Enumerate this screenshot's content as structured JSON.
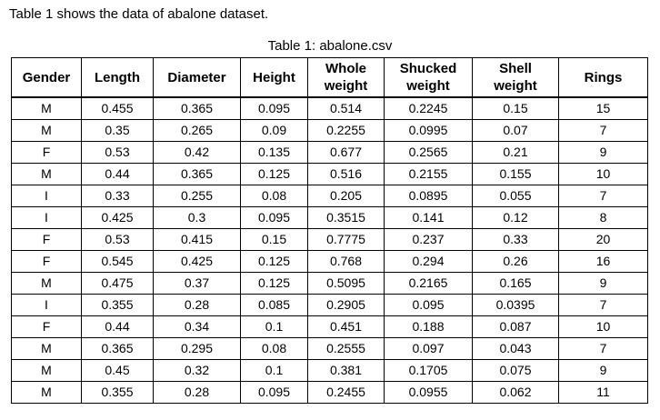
{
  "intro_text": "Table 1 shows the data of abalone dataset.",
  "table": {
    "caption": "Table 1: abalone.csv",
    "columns": [
      {
        "key": "gender",
        "label_line1": "Gender",
        "label_line2": ""
      },
      {
        "key": "length",
        "label_line1": "Length",
        "label_line2": ""
      },
      {
        "key": "diameter",
        "label_line1": "Diameter",
        "label_line2": ""
      },
      {
        "key": "height",
        "label_line1": "Height",
        "label_line2": ""
      },
      {
        "key": "whole_weight",
        "label_line1": "Whole",
        "label_line2": "weight"
      },
      {
        "key": "shucked_weight",
        "label_line1": "Shucked",
        "label_line2": "weight"
      },
      {
        "key": "shell_weight",
        "label_line1": "Shell",
        "label_line2": "weight"
      },
      {
        "key": "rings",
        "label_line1": "Rings",
        "label_line2": ""
      }
    ],
    "rows": [
      [
        "M",
        "0.455",
        "0.365",
        "0.095",
        "0.514",
        "0.2245",
        "0.15",
        "15"
      ],
      [
        "M",
        "0.35",
        "0.265",
        "0.09",
        "0.2255",
        "0.0995",
        "0.07",
        "7"
      ],
      [
        "F",
        "0.53",
        "0.42",
        "0.135",
        "0.677",
        "0.2565",
        "0.21",
        "9"
      ],
      [
        "M",
        "0.44",
        "0.365",
        "0.125",
        "0.516",
        "0.2155",
        "0.155",
        "10"
      ],
      [
        "I",
        "0.33",
        "0.255",
        "0.08",
        "0.205",
        "0.0895",
        "0.055",
        "7"
      ],
      [
        "I",
        "0.425",
        "0.3",
        "0.095",
        "0.3515",
        "0.141",
        "0.12",
        "8"
      ],
      [
        "F",
        "0.53",
        "0.415",
        "0.15",
        "0.7775",
        "0.237",
        "0.33",
        "20"
      ],
      [
        "F",
        "0.545",
        "0.425",
        "0.125",
        "0.768",
        "0.294",
        "0.26",
        "16"
      ],
      [
        "M",
        "0.475",
        "0.37",
        "0.125",
        "0.5095",
        "0.2165",
        "0.165",
        "9"
      ],
      [
        "I",
        "0.355",
        "0.28",
        "0.085",
        "0.2905",
        "0.095",
        "0.0395",
        "7"
      ],
      [
        "F",
        "0.44",
        "0.34",
        "0.1",
        "0.451",
        "0.188",
        "0.087",
        "10"
      ],
      [
        "M",
        "0.365",
        "0.295",
        "0.08",
        "0.2555",
        "0.097",
        "0.043",
        "7"
      ],
      [
        "M",
        "0.45",
        "0.32",
        "0.1",
        "0.381",
        "0.1705",
        "0.075",
        "9"
      ],
      [
        "M",
        "0.355",
        "0.28",
        "0.095",
        "0.2455",
        "0.0955",
        "0.062",
        "11"
      ]
    ]
  }
}
